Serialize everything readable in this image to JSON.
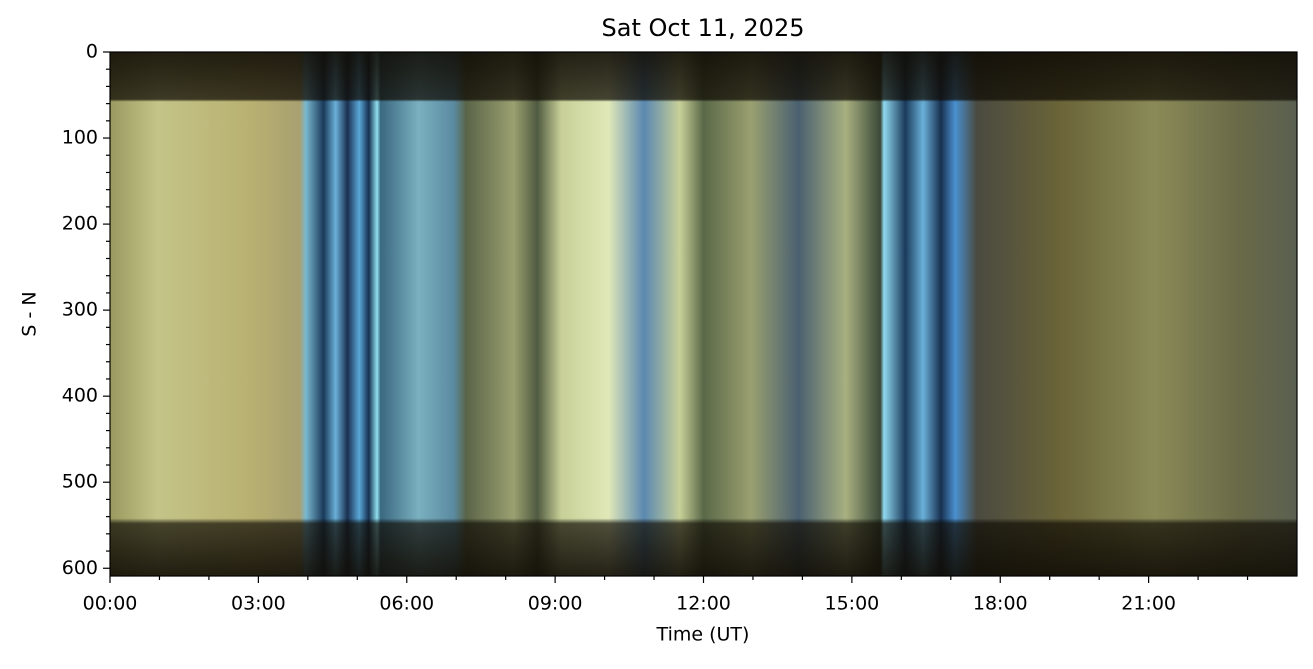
{
  "chart_data": {
    "type": "keogram",
    "title": "Sat Oct 11, 2025",
    "x_label": "Time (UT)",
    "y_label": "S - N",
    "xlim": [
      0,
      24
    ],
    "xticks": [
      {
        "value": 0,
        "label": "00:00"
      },
      {
        "value": 3,
        "label": "03:00"
      },
      {
        "value": 6,
        "label": "06:00"
      },
      {
        "value": 9,
        "label": "09:00"
      },
      {
        "value": 12,
        "label": "12:00"
      },
      {
        "value": 15,
        "label": "15:00"
      },
      {
        "value": 18,
        "label": "18:00"
      },
      {
        "value": 21,
        "label": "21:00"
      }
    ],
    "xminorticks": [
      1,
      2,
      4,
      5,
      7,
      8,
      10,
      11,
      13,
      14,
      16,
      17,
      19,
      20,
      22,
      23
    ],
    "ylim": [
      609,
      0
    ],
    "yticks": [
      0,
      100,
      200,
      300,
      400,
      500,
      600
    ],
    "yminorticks": [
      20,
      40,
      60,
      80,
      120,
      140,
      160,
      180,
      220,
      240,
      260,
      280,
      320,
      340,
      360,
      380,
      420,
      440,
      460,
      480,
      520,
      540,
      560,
      580
    ]
  }
}
